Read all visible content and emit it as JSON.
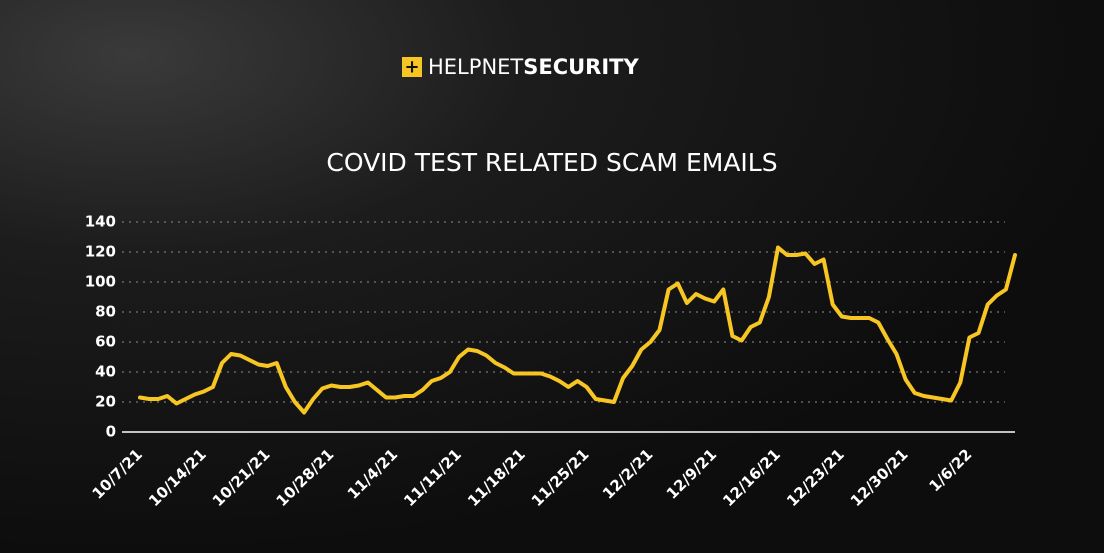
{
  "brand": {
    "icon": "+",
    "part1": "HELP",
    "part2": "NET",
    "part3": "SECURITY"
  },
  "chart_data": {
    "type": "line",
    "title": "COVID TEST RELATED SCAM EMAILS",
    "categories": [
      "10/7/21",
      null,
      null,
      null,
      null,
      null,
      null,
      "10/14/21",
      null,
      null,
      null,
      null,
      null,
      null,
      "10/21/21",
      null,
      null,
      null,
      null,
      null,
      null,
      "10/28/21",
      null,
      null,
      null,
      null,
      null,
      null,
      "11/4/21",
      null,
      null,
      null,
      null,
      null,
      null,
      "11/11/21",
      null,
      null,
      null,
      null,
      null,
      null,
      "11/18/21",
      null,
      null,
      null,
      null,
      null,
      null,
      "11/25/21",
      null,
      null,
      null,
      null,
      null,
      null,
      "12/2/21",
      null,
      null,
      null,
      null,
      null,
      null,
      "12/9/21",
      null,
      null,
      null,
      null,
      null,
      null,
      "12/16/21",
      null,
      null,
      null,
      null,
      null,
      null,
      "12/23/21",
      null,
      null,
      null,
      null,
      null,
      null,
      "12/30/21",
      null,
      null,
      null,
      null,
      null,
      null,
      "1/6/22",
      null,
      null,
      null,
      null,
      null
    ],
    "values": [
      23,
      22,
      22,
      24,
      19,
      22,
      25,
      27,
      30,
      46,
      52,
      51,
      48,
      45,
      44,
      46,
      30,
      20,
      13,
      22,
      29,
      31,
      30,
      30,
      31,
      33,
      28,
      23,
      23,
      24,
      24,
      28,
      34,
      36,
      40,
      50,
      55,
      54,
      51,
      46,
      43,
      39,
      39,
      39,
      39,
      37,
      34,
      30,
      34,
      30,
      22,
      21,
      20,
      36,
      44,
      55,
      60,
      68,
      95,
      99,
      86,
      92,
      89,
      87,
      95,
      64,
      61,
      70,
      73,
      90,
      123,
      118,
      118,
      119,
      112,
      115,
      85,
      77,
      76,
      76,
      76,
      73,
      62,
      52,
      35,
      26,
      24,
      23,
      22,
      21,
      33,
      63,
      66,
      85,
      91,
      95,
      118
    ],
    "color": "#f7c623",
    "ylim": [
      0,
      140
    ],
    "yticks": [
      0,
      20,
      40,
      60,
      80,
      100,
      120,
      140
    ],
    "grid": true
  }
}
